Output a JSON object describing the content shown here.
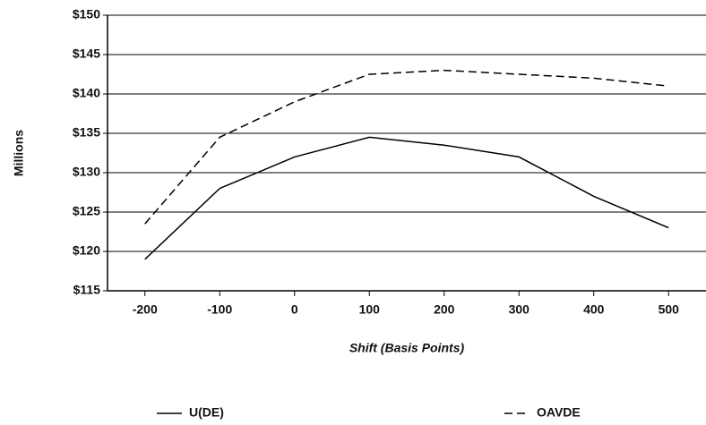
{
  "chart_data": {
    "type": "line",
    "x_label": "Shift (Basis Points)",
    "y_label": "Millions",
    "x": [
      -200,
      -100,
      0,
      100,
      200,
      300,
      400,
      500
    ],
    "xlim": [
      -250,
      550
    ],
    "xticks": [
      -200,
      -100,
      0,
      100,
      200,
      300,
      400,
      500
    ],
    "ylim": [
      115,
      150
    ],
    "yticks": [
      {
        "value": 115,
        "label": "$115"
      },
      {
        "value": 120,
        "label": "$120"
      },
      {
        "value": 125,
        "label": "$125"
      },
      {
        "value": 130,
        "label": "$130"
      },
      {
        "value": 135,
        "label": "$135"
      },
      {
        "value": 140,
        "label": "$140"
      },
      {
        "value": 145,
        "label": "$145"
      },
      {
        "value": 150,
        "label": "$150"
      }
    ],
    "grid": true,
    "legend": "bottom",
    "series": [
      {
        "name": "U(DE)",
        "color": "#000000",
        "line_style": "solid",
        "values": [
          119,
          128,
          132,
          134.5,
          133.5,
          132,
          127,
          123
        ]
      },
      {
        "name": "OAVDE",
        "color": "#000000",
        "line_style": "dashed",
        "values": [
          123.5,
          134.5,
          139,
          142.5,
          143,
          142.5,
          142,
          141
        ]
      }
    ]
  }
}
